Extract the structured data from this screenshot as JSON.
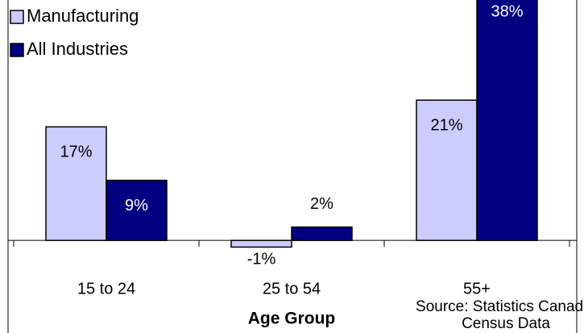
{
  "chart_data": {
    "type": "bar",
    "x_label": "Age Group",
    "source": [
      "Source: Statistics Canada,",
      "Census Data"
    ],
    "categories": [
      "15 to 24",
      "25 to 54",
      "55+"
    ],
    "series": [
      {
        "name": "Manufacturing",
        "color": "#ccccff",
        "values": [
          17,
          -1,
          21
        ],
        "value_labels": [
          "17%",
          "-1%",
          "21%"
        ]
      },
      {
        "name": "All Industries",
        "color": "#000080",
        "values": [
          9,
          2,
          38
        ],
        "value_labels": [
          "9%",
          "2%",
          "38%"
        ]
      }
    ],
    "ylim": [
      -3,
      36
    ],
    "legend": "top-left"
  }
}
